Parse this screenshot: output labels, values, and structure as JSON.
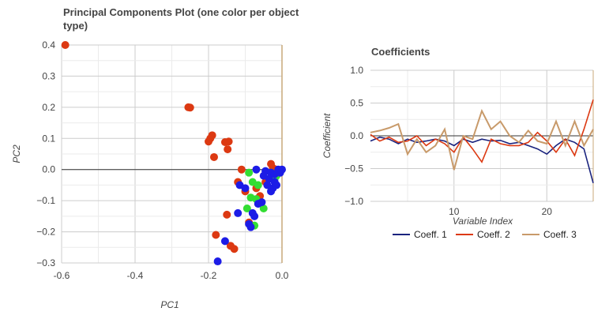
{
  "chart_data": [
    {
      "type": "scatter",
      "title_line1": "Principal Components Plot (one color per object",
      "title_line2": "type)",
      "xlabel": "PC1",
      "ylabel": "PC2",
      "xlim": [
        -0.6,
        0.0
      ],
      "ylim": [
        -0.3,
        0.4
      ],
      "x_ticks": [
        "-0.6",
        "-0.4",
        "-0.2",
        "0.0"
      ],
      "y_ticks": [
        "0.4",
        "0.3",
        "0.2",
        "0.1",
        "0.0",
        "−0.1",
        "−0.2",
        "−0.3"
      ],
      "grid": true,
      "colors": {
        "red": "#dc3912",
        "green": "#33dd33",
        "blue": "#1c1ce6",
        "axis_zero_x": "#c8a97a"
      },
      "series": [
        {
          "color": "red",
          "points": [
            [
              -0.59,
              0.4
            ],
            [
              -0.255,
              0.2
            ],
            [
              -0.25,
              0.199
            ],
            [
              -0.19,
              0.11
            ],
            [
              -0.195,
              0.1
            ],
            [
              -0.2,
              0.09
            ],
            [
              -0.155,
              0.088
            ],
            [
              -0.145,
              0.09
            ],
            [
              -0.148,
              0.065
            ],
            [
              -0.185,
              0.04
            ],
            [
              -0.11,
              0.0
            ],
            [
              -0.03,
              0.018
            ],
            [
              -0.025,
              0.005
            ],
            [
              -0.015,
              0.0
            ],
            [
              -0.12,
              -0.04
            ],
            [
              -0.1,
              -0.07
            ],
            [
              -0.15,
              -0.145
            ],
            [
              -0.09,
              -0.17
            ],
            [
              -0.18,
              -0.21
            ],
            [
              -0.14,
              -0.245
            ],
            [
              -0.13,
              -0.255
            ],
            [
              -0.06,
              -0.085
            ],
            [
              -0.07,
              -0.06
            ],
            [
              -0.045,
              -0.04
            ]
          ]
        },
        {
          "color": "green",
          "points": [
            [
              -0.09,
              -0.01
            ],
            [
              -0.08,
              -0.04
            ],
            [
              -0.065,
              -0.05
            ],
            [
              -0.085,
              -0.09
            ],
            [
              -0.07,
              -0.095
            ],
            [
              -0.095,
              -0.125
            ],
            [
              -0.05,
              -0.125
            ],
            [
              -0.075,
              -0.18
            ],
            [
              -0.02,
              -0.03
            ],
            [
              -0.015,
              -0.02
            ],
            [
              -0.03,
              -0.01
            ],
            [
              -0.01,
              -0.005
            ]
          ]
        },
        {
          "color": "blue",
          "points": [
            [
              -0.07,
              0.0
            ],
            [
              -0.03,
              -0.01
            ],
            [
              -0.035,
              -0.03
            ],
            [
              -0.04,
              -0.05
            ],
            [
              -0.03,
              -0.07
            ],
            [
              -0.025,
              -0.06
            ],
            [
              -0.01,
              0.0
            ],
            [
              0.0,
              0.0
            ],
            [
              -0.005,
              -0.01
            ],
            [
              -0.02,
              -0.015
            ],
            [
              -0.05,
              -0.02
            ],
            [
              -0.045,
              -0.005
            ],
            [
              -0.02,
              -0.04
            ],
            [
              -0.015,
              -0.05
            ],
            [
              -0.1,
              -0.06
            ],
            [
              -0.115,
              -0.05
            ],
            [
              -0.065,
              -0.11
            ],
            [
              -0.055,
              -0.105
            ],
            [
              -0.08,
              -0.14
            ],
            [
              -0.075,
              -0.15
            ],
            [
              -0.09,
              -0.175
            ],
            [
              -0.085,
              -0.185
            ],
            [
              -0.12,
              -0.14
            ],
            [
              -0.155,
              -0.23
            ],
            [
              -0.175,
              -0.295
            ]
          ]
        }
      ]
    },
    {
      "type": "line",
      "title": "Coefficients",
      "xlabel": "Variable Index",
      "ylabel": "Coefficient",
      "xlim": [
        1,
        25
      ],
      "ylim": [
        -1.0,
        1.0
      ],
      "x_ticks": [
        "10",
        "20"
      ],
      "y_ticks": [
        "1.0",
        "0.5",
        "0.0",
        "−0.5",
        "−1.0"
      ],
      "grid": true,
      "legend_position": "bottom",
      "x": [
        1,
        2,
        3,
        4,
        5,
        6,
        7,
        8,
        9,
        10,
        11,
        12,
        13,
        14,
        15,
        16,
        17,
        18,
        19,
        20,
        21,
        22,
        23,
        24,
        25
      ],
      "series": [
        {
          "name": "Coeff. 1",
          "color": "#1a237e",
          "values": [
            -0.08,
            -0.02,
            -0.05,
            -0.12,
            -0.05,
            -0.1,
            -0.08,
            -0.05,
            -0.08,
            -0.15,
            -0.05,
            -0.1,
            -0.05,
            -0.08,
            -0.07,
            -0.12,
            -0.1,
            -0.15,
            -0.2,
            -0.28,
            -0.15,
            -0.05,
            -0.1,
            -0.2,
            -0.72
          ]
        },
        {
          "name": "Coeff. 2",
          "color": "#dc3912",
          "values": [
            0.02,
            -0.08,
            -0.02,
            -0.1,
            -0.08,
            0.0,
            -0.15,
            -0.05,
            -0.12,
            -0.25,
            -0.02,
            -0.2,
            -0.4,
            -0.05,
            -0.12,
            -0.15,
            -0.15,
            -0.1,
            0.05,
            -0.08,
            -0.25,
            -0.05,
            -0.3,
            0.1,
            0.55
          ]
        },
        {
          "name": "Coeff. 3",
          "color": "#c89a6a",
          "values": [
            0.05,
            0.08,
            0.12,
            0.18,
            -0.28,
            -0.05,
            -0.25,
            -0.15,
            0.1,
            -0.52,
            0.0,
            -0.05,
            0.38,
            0.1,
            0.22,
            0.0,
            -0.1,
            0.08,
            -0.08,
            -0.12,
            0.22,
            -0.15,
            0.22,
            -0.15,
            0.1
          ]
        }
      ]
    }
  ]
}
